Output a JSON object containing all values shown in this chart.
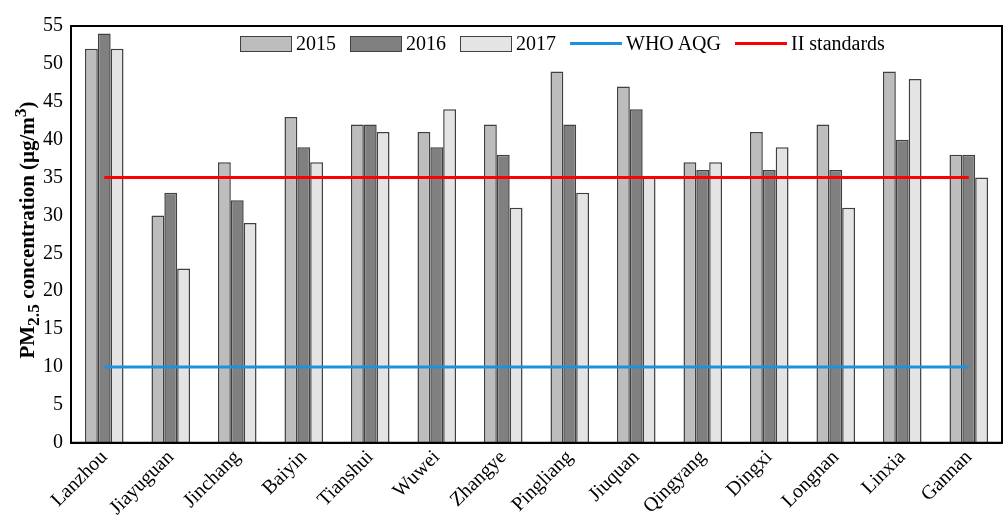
{
  "chart_data": {
    "type": "bar",
    "ylabel": "PM$_{2.5}$ concentration (μg/m$^{3}$)",
    "categories": [
      "Lanzhou",
      "Jiayuguan",
      "Jinchang",
      "Baiyin",
      "Tianshui",
      "Wuwei",
      "Zhangye",
      "Pingliang",
      "Jiuquan",
      "Qingyang",
      "Dingxi",
      "Longnan",
      "Linxia",
      "Gannan"
    ],
    "series": [
      {
        "name": "2015",
        "color": "#bdbdbd",
        "values": [
          52,
          30,
          37,
          43,
          42,
          41,
          42,
          49,
          47,
          37,
          41,
          42,
          49,
          38
        ]
      },
      {
        "name": "2016",
        "color": "#808080",
        "values": [
          54,
          33,
          32,
          39,
          42,
          39,
          38,
          42,
          44,
          36,
          36,
          36,
          40,
          38
        ]
      },
      {
        "name": "2017",
        "color": "#e4e4e4",
        "values": [
          52,
          23,
          29,
          37,
          41,
          44,
          31,
          33,
          35,
          37,
          39,
          31,
          48,
          35
        ]
      },
      {
        "name": "WHO AQG",
        "type": "line",
        "color": "#1e90e0",
        "values": [
          10,
          10,
          10,
          10,
          10,
          10,
          10,
          10,
          10,
          10,
          10,
          10,
          10,
          10
        ]
      },
      {
        "name": "II standards",
        "type": "line",
        "color": "#ff0000",
        "values": [
          35,
          35,
          35,
          35,
          35,
          35,
          35,
          35,
          35,
          35,
          35,
          35,
          35,
          35
        ]
      }
    ],
    "ylim": [
      0,
      55
    ],
    "yticks": [
      0,
      5,
      10,
      15,
      20,
      25,
      30,
      35,
      40,
      45,
      50,
      55
    ],
    "grid": false,
    "legend": "top"
  }
}
